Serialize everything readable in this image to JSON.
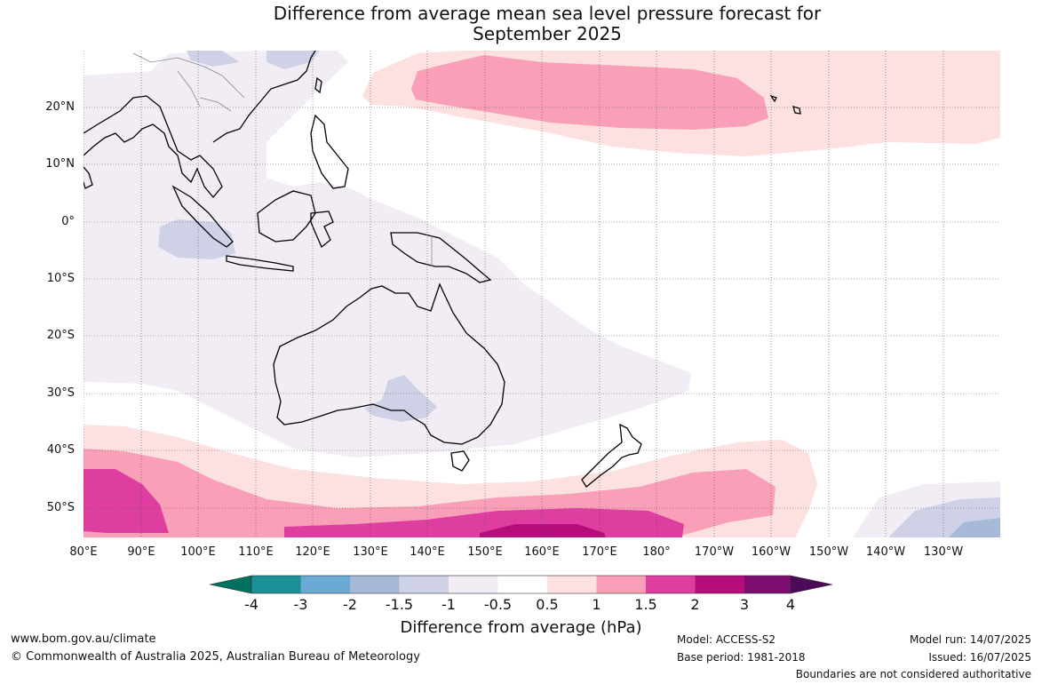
{
  "title_line1": "Difference from average mean sea level pressure forecast for",
  "title_line2": "September 2025",
  "lat_labels": [
    "20°N",
    "10°N",
    "0°",
    "10°S",
    "20°S",
    "30°S",
    "40°S",
    "50°S"
  ],
  "lon_labels": [
    "80°E",
    "90°E",
    "100°E",
    "110°E",
    "120°E",
    "130°E",
    "140°E",
    "150°E",
    "160°E",
    "170°E",
    "180°",
    "170°W",
    "160°W",
    "150°W",
    "140°W",
    "130°W"
  ],
  "colorbar": {
    "title": "Difference from average (hPa)",
    "ticks": [
      "-4",
      "-3",
      "-2",
      "-1.5",
      "-1",
      "-0.5",
      "0.5",
      "1",
      "1.5",
      "2",
      "3",
      "4"
    ],
    "colors": [
      "#007060",
      "#1a8f95",
      "#6aaad4",
      "#a6b9d6",
      "#cfd2e6",
      "#f2edf5",
      "#ffffff",
      "#fde0e0",
      "#f9a0b8",
      "#dd3ea0",
      "#b50e7c",
      "#7d0d6f",
      "#4c0a58"
    ]
  },
  "footer": {
    "website": "www.bom.gov.au/climate",
    "copyright": "© Commonwealth of Australia 2025, Australian Bureau of Meteorology",
    "model": "Model: ACCESS-S2",
    "base_period": "Base period: 1981-2018",
    "model_run": "Model run: 14/07/2025",
    "issued": "Issued: 16/07/2025",
    "disclaimer": "Boundaries are not considered authoritative"
  }
}
